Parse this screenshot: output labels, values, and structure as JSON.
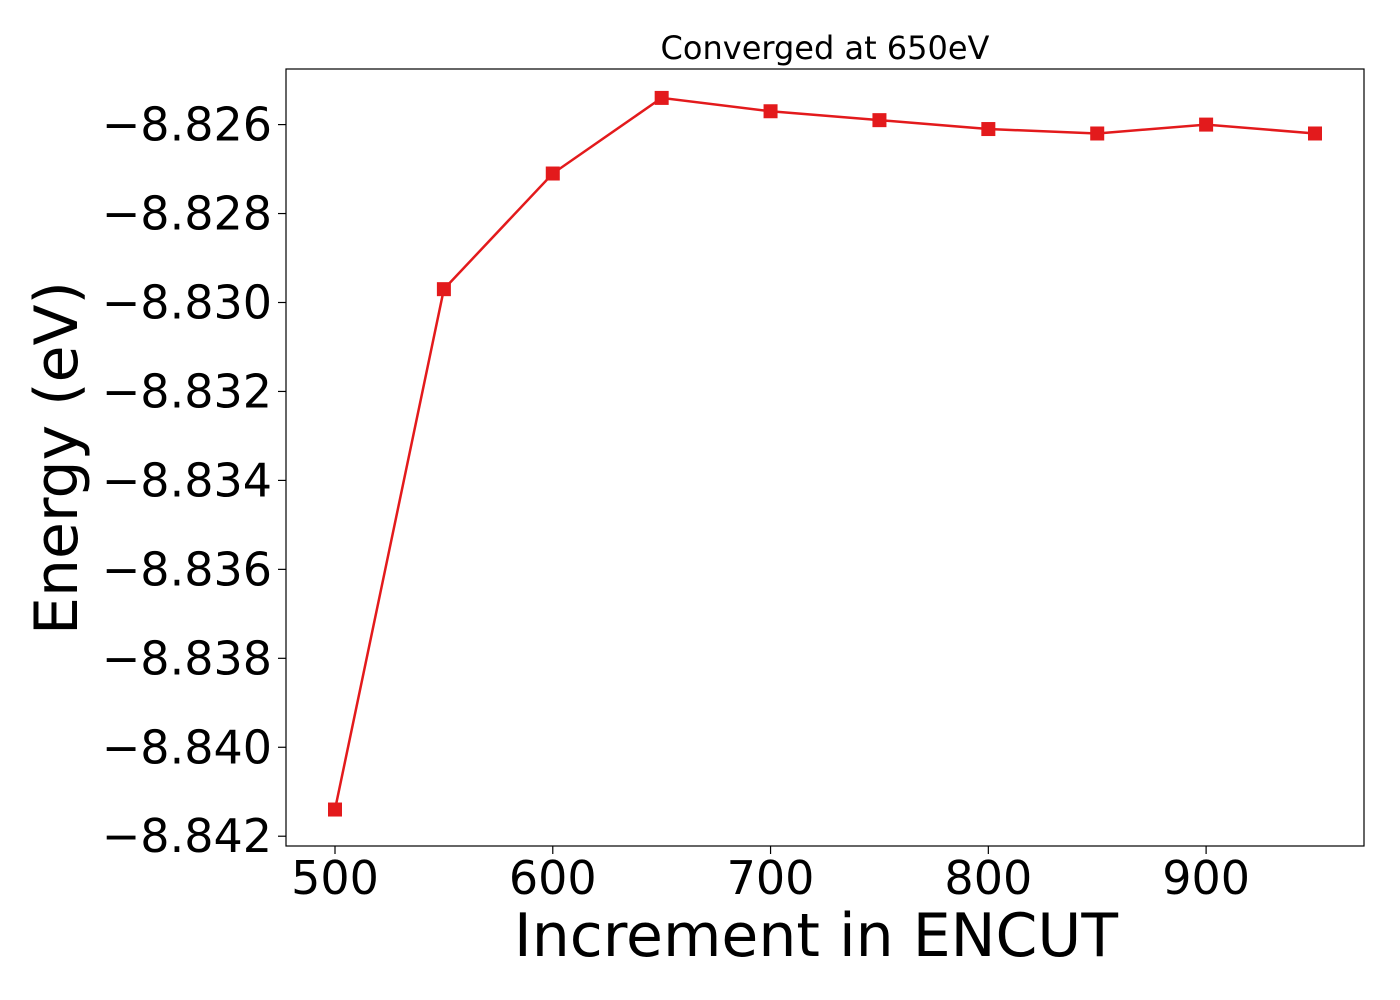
{
  "chart_data": {
    "type": "line",
    "title": "Converged at 650eV",
    "xlabel": "Increment in ENCUT",
    "ylabel": "Energy (eV)",
    "x": [
      500,
      550,
      600,
      650,
      700,
      750,
      800,
      850,
      900,
      950
    ],
    "series": [
      {
        "values": [
          -8.8414,
          -8.8297,
          -8.8271,
          -8.8254,
          -8.8257,
          -8.8259,
          -8.8261,
          -8.8262,
          -8.826,
          -8.8262
        ]
      }
    ],
    "xlim": [
      477.5,
      972.5
    ],
    "ylim": [
      -8.84222,
      -8.82475
    ],
    "xticks": [
      500,
      600,
      700,
      800,
      900
    ],
    "xtick_labels": [
      "500",
      "600",
      "700",
      "800",
      "900"
    ],
    "yticks": [
      -8.826,
      -8.828,
      -8.83,
      -8.832,
      -8.834,
      -8.836,
      -8.838,
      -8.84,
      -8.842
    ],
    "ytick_labels": [
      "−8.826",
      "−8.828",
      "−8.830",
      "−8.832",
      "−8.834",
      "−8.836",
      "−8.838",
      "−8.840",
      "−8.842"
    ],
    "grid": false,
    "legend": "none",
    "line_color": "#e31a1c",
    "marker": "square"
  }
}
